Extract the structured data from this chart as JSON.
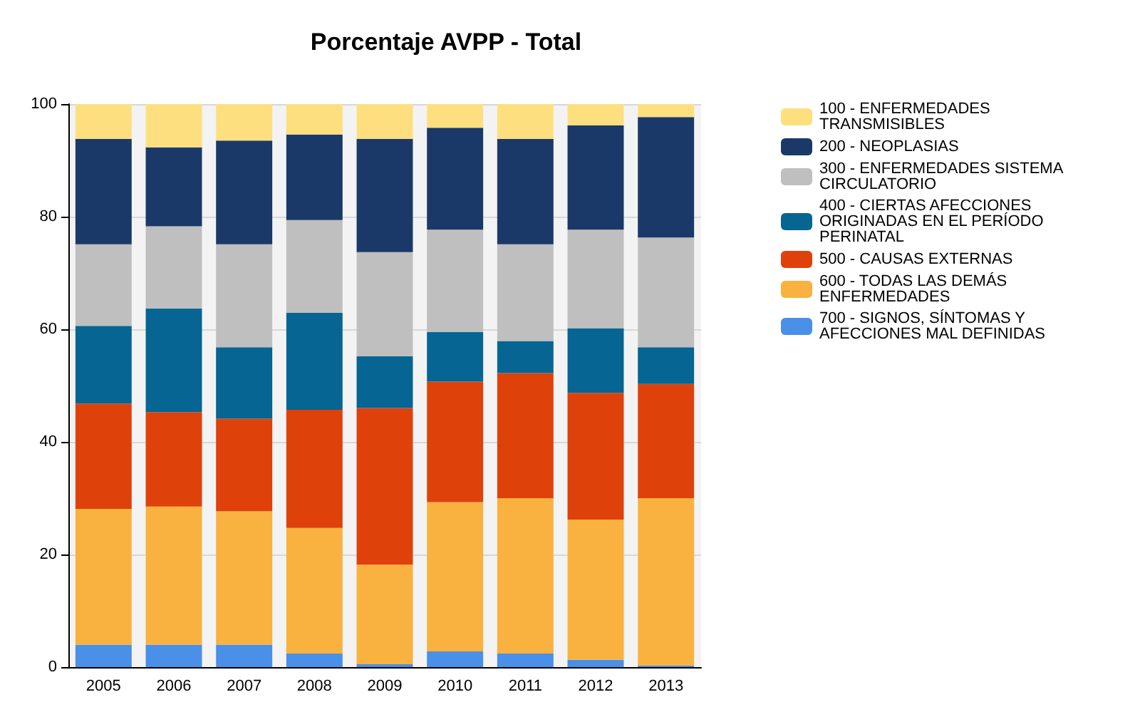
{
  "chart_data": {
    "type": "bar",
    "title": "Porcentaje AVPP - Total",
    "stacked": true,
    "categories": [
      "2005",
      "2006",
      "2007",
      "2008",
      "2009",
      "2010",
      "2011",
      "2012",
      "2013"
    ],
    "series": [
      {
        "name": "700 - SIGNOS, SÍNTOMAS Y AFECCIONES MAL DEFINIDAS",
        "color": "#4a8fe8",
        "values": [
          4.0,
          4.0,
          4.0,
          2.4,
          0.5,
          2.8,
          2.4,
          1.3,
          0.3
        ]
      },
      {
        "name": "600 - TODAS LAS DEMÁS ENFERMEDADES",
        "color": "#f9b23f",
        "values": [
          24.1,
          24.5,
          23.7,
          22.3,
          17.7,
          26.5,
          27.6,
          24.9,
          29.7
        ]
      },
      {
        "name": "500 - CAUSAS EXTERNAS",
        "color": "#df410b",
        "values": [
          18.7,
          16.8,
          16.4,
          21.0,
          27.8,
          21.4,
          22.2,
          22.5,
          20.3
        ]
      },
      {
        "name": "400 - CIERTAS AFECCIONES ORIGINADAS EN EL PERÍODO PERINATAL",
        "color": "#066592",
        "values": [
          13.8,
          18.4,
          12.7,
          17.2,
          9.2,
          8.8,
          5.7,
          11.5,
          6.5
        ]
      },
      {
        "name": "300 - ENFERMEDADES SISTEMA CIRCULATORIO",
        "color": "#bfbfbf",
        "values": [
          14.5,
          14.6,
          18.3,
          16.5,
          18.5,
          18.2,
          17.2,
          17.5,
          19.5
        ]
      },
      {
        "name": "200 - NEOPLASIAS",
        "color": "#1b3968",
        "values": [
          18.7,
          14.0,
          18.4,
          15.2,
          20.1,
          18.1,
          18.7,
          18.5,
          21.4
        ]
      },
      {
        "name": "100 - ENFERMEDADES TRANSMISIBLES",
        "color": "#fedf7f",
        "values": [
          6.2,
          7.7,
          6.5,
          5.4,
          6.2,
          4.2,
          6.2,
          3.8,
          2.3
        ]
      }
    ],
    "ylim": [
      0,
      100
    ],
    "yticks": [
      0,
      20,
      40,
      60,
      80,
      100
    ],
    "grid": "y",
    "legend": "right"
  }
}
